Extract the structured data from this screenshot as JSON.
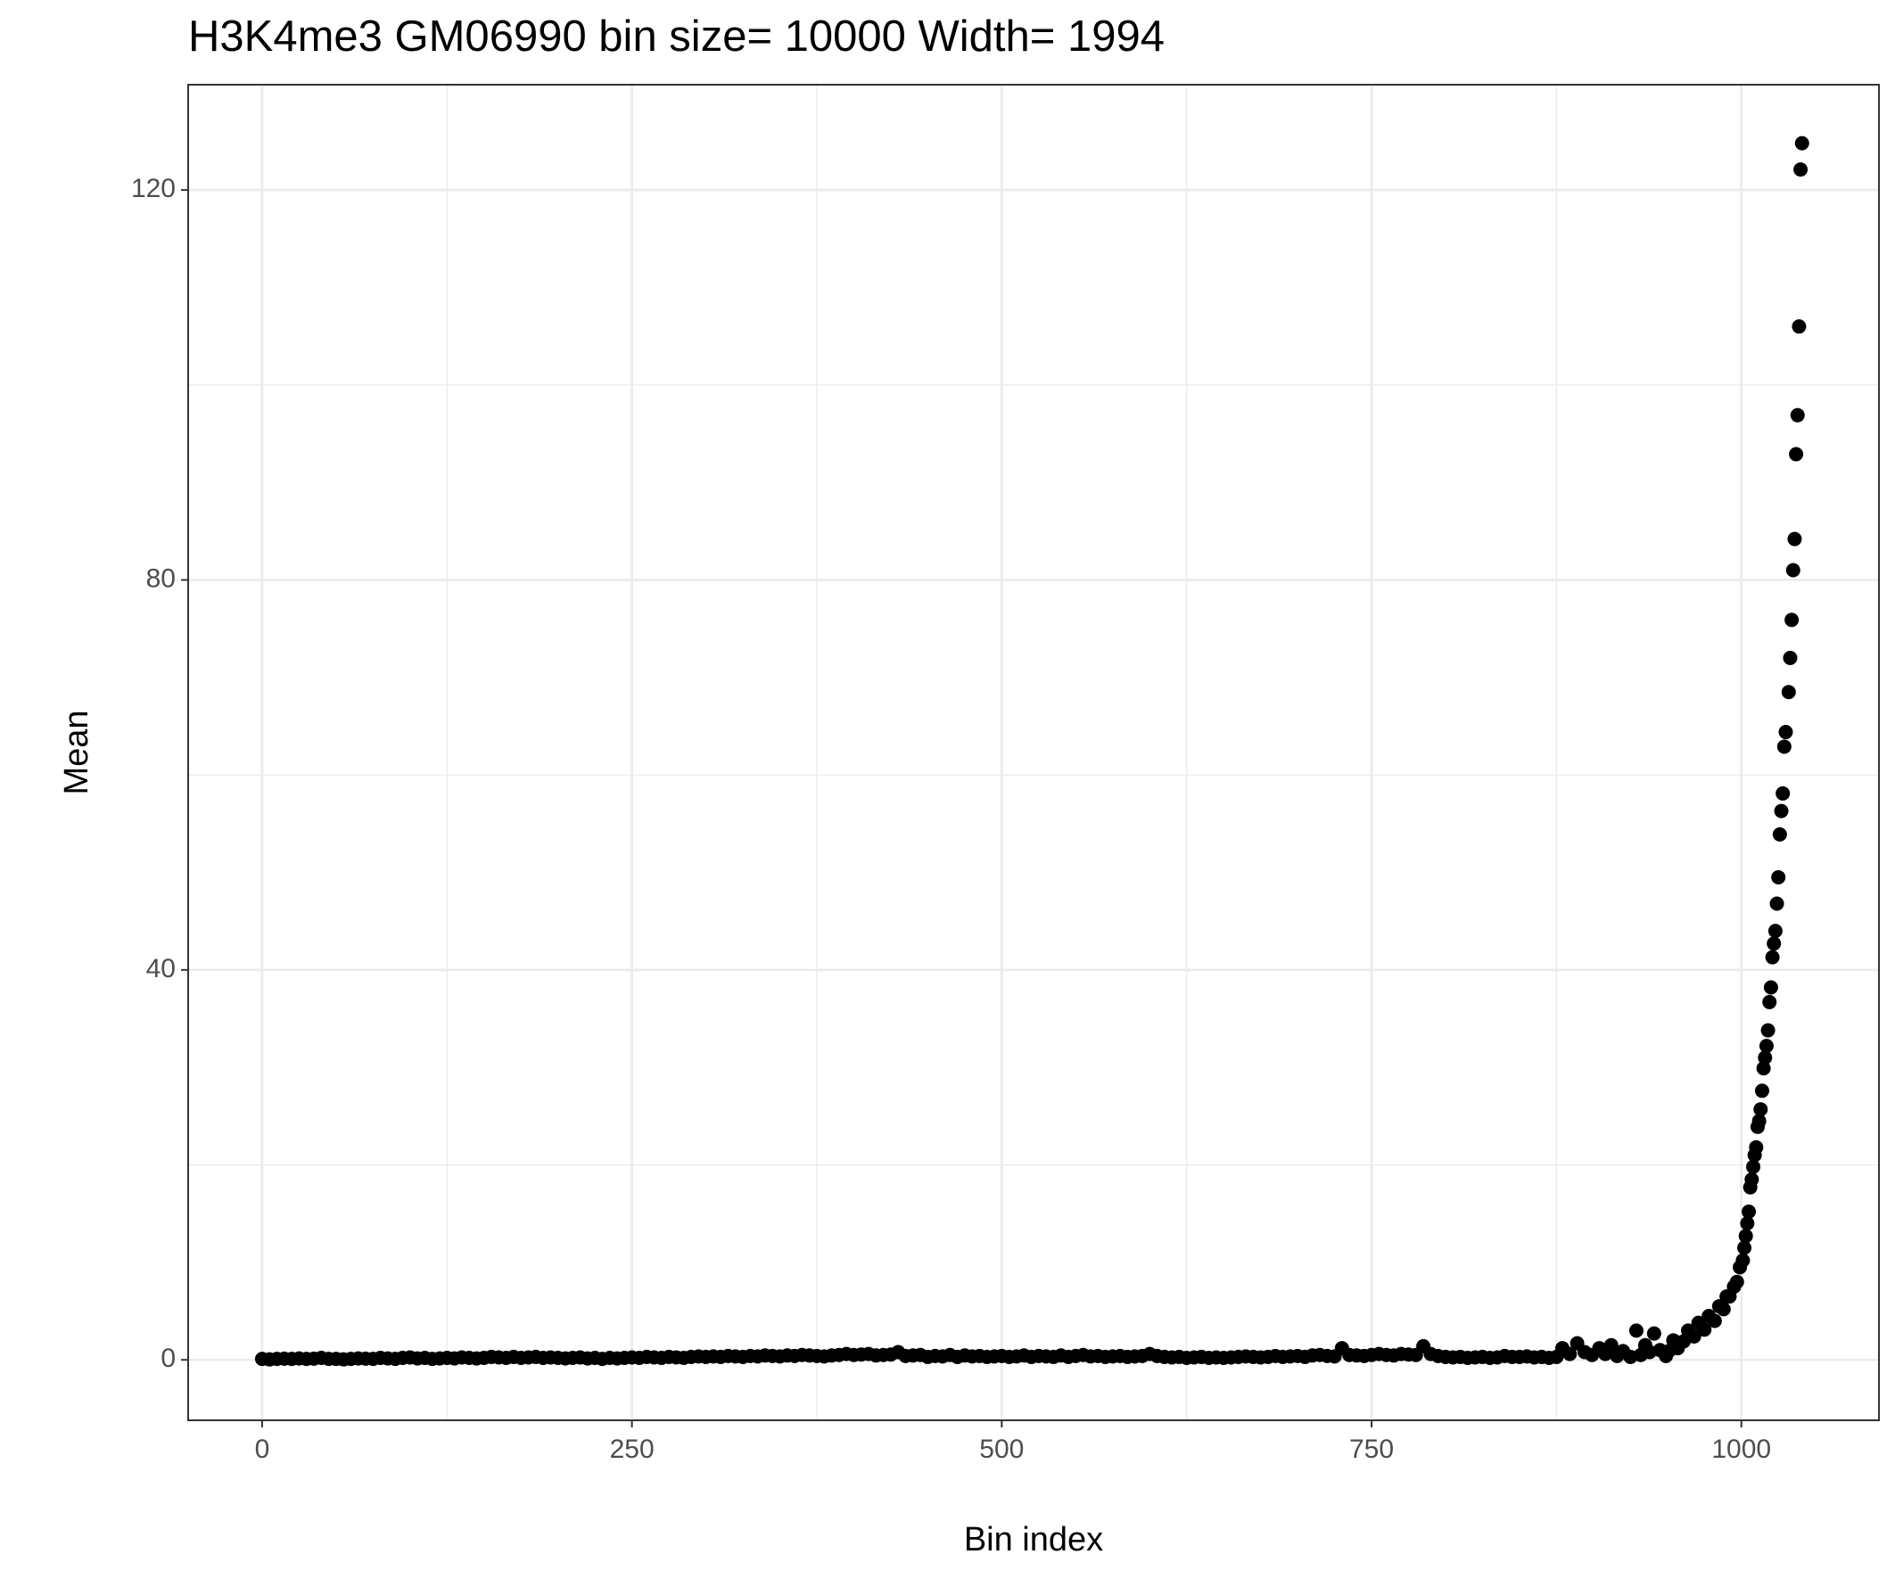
{
  "chart_data": {
    "type": "scatter",
    "title": "H3K4me3 GM06990  bin size=  10000  Width=  1994",
    "x_label": "Bin index",
    "y_label": "Mean",
    "color": "#000000",
    "grid": true,
    "xlim": [
      -50,
      1093
    ],
    "ylim": [
      -6.2,
      130.8
    ],
    "xticks": [
      0,
      250,
      500,
      750,
      1000
    ],
    "yticks": [
      0,
      40,
      80,
      120
    ],
    "x": [
      0,
      5,
      10,
      15,
      20,
      25,
      30,
      35,
      40,
      45,
      50,
      55,
      60,
      65,
      70,
      75,
      80,
      85,
      90,
      95,
      100,
      105,
      110,
      115,
      120,
      125,
      130,
      135,
      140,
      145,
      150,
      155,
      160,
      165,
      170,
      175,
      180,
      185,
      190,
      195,
      200,
      205,
      210,
      215,
      220,
      225,
      230,
      235,
      240,
      245,
      250,
      255,
      260,
      265,
      270,
      275,
      280,
      285,
      290,
      295,
      300,
      305,
      310,
      315,
      320,
      325,
      330,
      335,
      340,
      345,
      350,
      355,
      360,
      365,
      370,
      375,
      380,
      385,
      390,
      395,
      400,
      405,
      410,
      415,
      420,
      425,
      430,
      435,
      440,
      445,
      450,
      455,
      460,
      465,
      470,
      475,
      480,
      485,
      490,
      495,
      500,
      505,
      510,
      515,
      520,
      525,
      530,
      535,
      540,
      545,
      550,
      555,
      560,
      565,
      570,
      575,
      580,
      585,
      590,
      595,
      600,
      605,
      610,
      615,
      620,
      625,
      630,
      635,
      640,
      645,
      650,
      655,
      660,
      665,
      670,
      675,
      680,
      685,
      690,
      695,
      700,
      705,
      710,
      715,
      720,
      725,
      730,
      735,
      740,
      745,
      750,
      755,
      760,
      765,
      770,
      775,
      780,
      785,
      790,
      795,
      800,
      805,
      810,
      815,
      820,
      825,
      830,
      835,
      840,
      845,
      850,
      855,
      860,
      865,
      870,
      875,
      879,
      884,
      889,
      894,
      899,
      904,
      908,
      912,
      916,
      920,
      925,
      929,
      932,
      935,
      938,
      941,
      945,
      949,
      951,
      954,
      957,
      961,
      964,
      968,
      971,
      975,
      978,
      982,
      985,
      988,
      990,
      992,
      995,
      997,
      999,
      1001,
      1002,
      1003,
      1004,
      1005,
      1006,
      1007,
      1008,
      1009,
      1010,
      1011,
      1012,
      1013,
      1014,
      1015,
      1016,
      1017,
      1018,
      1019,
      1020,
      1021,
      1022,
      1023,
      1024,
      1025,
      1026,
      1027,
      1028,
      1029,
      1030,
      1032,
      1033,
      1034,
      1035,
      1036,
      1037,
      1038,
      1039,
      1040,
      1041
    ],
    "values": [
      0.1,
      0.05,
      0.1,
      0.12,
      0.1,
      0.15,
      0.1,
      0.12,
      0.2,
      0.1,
      0.1,
      0.05,
      0.1,
      0.15,
      0.12,
      0.1,
      0.2,
      0.15,
      0.1,
      0.2,
      0.25,
      0.15,
      0.2,
      0.1,
      0.15,
      0.2,
      0.15,
      0.25,
      0.2,
      0.15,
      0.2,
      0.3,
      0.25,
      0.2,
      0.3,
      0.2,
      0.25,
      0.3,
      0.2,
      0.25,
      0.2,
      0.15,
      0.2,
      0.25,
      0.15,
      0.2,
      0.1,
      0.2,
      0.15,
      0.2,
      0.25,
      0.2,
      0.3,
      0.25,
      0.2,
      0.3,
      0.25,
      0.2,
      0.3,
      0.35,
      0.3,
      0.35,
      0.3,
      0.4,
      0.35,
      0.3,
      0.4,
      0.35,
      0.45,
      0.4,
      0.35,
      0.45,
      0.4,
      0.5,
      0.45,
      0.4,
      0.35,
      0.45,
      0.5,
      0.6,
      0.5,
      0.55,
      0.6,
      0.45,
      0.5,
      0.55,
      0.8,
      0.4,
      0.45,
      0.5,
      0.3,
      0.4,
      0.35,
      0.5,
      0.3,
      0.45,
      0.35,
      0.4,
      0.3,
      0.35,
      0.4,
      0.3,
      0.35,
      0.45,
      0.3,
      0.4,
      0.35,
      0.3,
      0.45,
      0.3,
      0.4,
      0.5,
      0.35,
      0.4,
      0.3,
      0.35,
      0.4,
      0.3,
      0.35,
      0.4,
      0.6,
      0.4,
      0.3,
      0.25,
      0.3,
      0.2,
      0.25,
      0.3,
      0.2,
      0.25,
      0.2,
      0.25,
      0.3,
      0.35,
      0.3,
      0.25,
      0.3,
      0.4,
      0.3,
      0.35,
      0.4,
      0.3,
      0.45,
      0.5,
      0.4,
      0.35,
      1.2,
      0.5,
      0.45,
      0.4,
      0.5,
      0.6,
      0.5,
      0.45,
      0.6,
      0.55,
      0.5,
      1.4,
      0.6,
      0.4,
      0.3,
      0.25,
      0.3,
      0.2,
      0.25,
      0.3,
      0.2,
      0.25,
      0.4,
      0.3,
      0.3,
      0.35,
      0.25,
      0.3,
      0.2,
      0.3,
      1.2,
      0.6,
      1.7,
      0.8,
      0.5,
      1.2,
      0.6,
      1.5,
      0.4,
      0.9,
      0.3,
      3.0,
      0.5,
      1.5,
      0.8,
      2.7,
      1.0,
      0.4,
      0.9,
      2.0,
      1.2,
      1.9,
      3.0,
      2.4,
      3.8,
      3.1,
      4.5,
      4.0,
      5.5,
      5.2,
      6.5,
      6.5,
      7.5,
      8.0,
      9.5,
      10.2,
      11.5,
      12.7,
      14,
      15.2,
      17.7,
      18.5,
      19.8,
      21,
      21.8,
      23.9,
      24.5,
      25.7,
      27.6,
      29.9,
      31,
      32.2,
      33.8,
      36.7,
      38.2,
      41.3,
      42.7,
      44,
      46.8,
      49.5,
      53.9,
      56.3,
      58.1,
      62.9,
      64.4,
      68.5,
      72,
      75.9,
      81,
      84.2,
      92.9,
      96.9,
      106,
      122.1,
      124.8
    ]
  }
}
